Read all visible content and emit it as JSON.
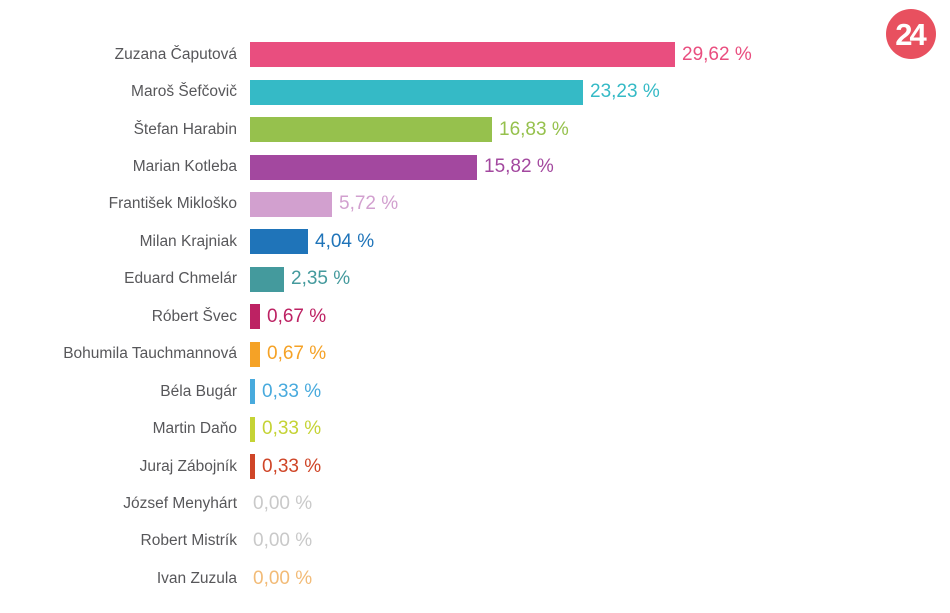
{
  "logo": {
    "text": "24",
    "bg_color": "#e8505f",
    "text_color": "#ffffff"
  },
  "chart_data": {
    "type": "bar",
    "orientation": "horizontal",
    "title": "",
    "xlabel": "",
    "ylabel": "",
    "unit": "%",
    "decimal_separator": ",",
    "xlim": [
      0,
      30
    ],
    "grid": false,
    "legend": false,
    "background": "#ffffff",
    "label_color": "#57575a",
    "categories": [
      "Zuzana Čaputová",
      "Maroš Šefčovič",
      "Štefan Harabin",
      "Marian Kotleba",
      "František Mikloško",
      "Milan Krajniak",
      "Eduard Chmelár",
      "Róbert Švec",
      "Bohumila Tauchmannová",
      "Béla Bugár",
      "Martin Daňo",
      "Juraj Zábojník",
      "József Menyhárt",
      "Robert Mistrík",
      "Ivan Zuzula"
    ],
    "values": [
      29.62,
      23.23,
      16.83,
      15.82,
      5.72,
      4.04,
      2.35,
      0.67,
      0.67,
      0.33,
      0.33,
      0.33,
      0.0,
      0.0,
      0.0
    ],
    "display_values": [
      "29,62 %",
      "23,23 %",
      "16,83 %",
      "15,82 %",
      "5,72 %",
      "4,04 %",
      "2,35 %",
      "0,67 %",
      "0,67 %",
      "0,33 %",
      "0,33 %",
      "0,33 %",
      "0,00 %",
      "0,00 %",
      "0,00 %"
    ],
    "colors": [
      "#e94e7f",
      "#35bac6",
      "#96c14d",
      "#a3489f",
      "#d2a0cf",
      "#1f74b9",
      "#449a9d",
      "#bd2263",
      "#f5a226",
      "#48aadd",
      "#c5d335",
      "#cf4527",
      "#c9c9c9",
      "#c9c9c9",
      "#f2bb77"
    ]
  }
}
